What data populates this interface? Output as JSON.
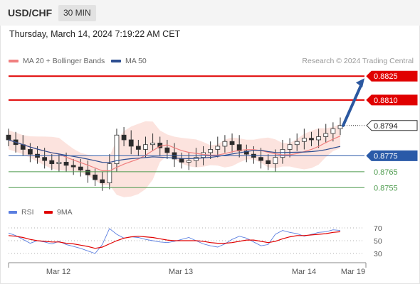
{
  "header": {
    "symbol": "USD/CHF",
    "timeframe": "30 MIN"
  },
  "timestamp": "Thursday, March 14, 2024 7:19:22 AM CET",
  "legend": {
    "ma_bb": "MA 20 + Bollinger Bands",
    "ma50": "MA 50",
    "rsi": "RSI",
    "rsi_ma": "9MA"
  },
  "credit": "Research © 2024 Trading Central",
  "colors": {
    "resistance": "#e00000",
    "support": "#4c9a4c",
    "pivot": "#2a5aa8",
    "current": "#222222",
    "ma20": "#f08080",
    "bands": "#fbd9d3",
    "ma50": "#2d4e91",
    "arrow": "#2b58a0",
    "rsi": "#5a7ee0",
    "rsi_ma": "#e00000",
    "candle_up": "#ffffff",
    "candle_down": "#2a2a2a"
  },
  "chart_data": [
    {
      "type": "candlestick",
      "price_range": [
        0.8748,
        0.883
      ],
      "x_labels": [
        "Mar 12",
        "Mar 13",
        "Mar 14",
        "Mar 19"
      ],
      "levels": [
        {
          "label": "0.8825",
          "value": 0.8825,
          "kind": "resistance"
        },
        {
          "label": "0.8810",
          "value": 0.881,
          "kind": "resistance"
        },
        {
          "label": "0.8794",
          "value": 0.8794,
          "kind": "current"
        },
        {
          "label": "0.8775",
          "value": 0.8775,
          "kind": "pivot"
        },
        {
          "label": "0.8765",
          "value": 0.8765,
          "kind": "support"
        },
        {
          "label": "0.8755",
          "value": 0.8755,
          "kind": "support"
        }
      ],
      "close_series": [
        0.8785,
        0.8782,
        0.8779,
        0.8776,
        0.8774,
        0.8772,
        0.877,
        0.8771,
        0.8769,
        0.8768,
        0.8766,
        0.8763,
        0.876,
        0.8758,
        0.877,
        0.8788,
        0.8785,
        0.8781,
        0.8779,
        0.8782,
        0.8783,
        0.878,
        0.8777,
        0.8773,
        0.8771,
        0.8772,
        0.8774,
        0.8777,
        0.8779,
        0.8781,
        0.8784,
        0.8782,
        0.8778,
        0.8776,
        0.8774,
        0.8772,
        0.877,
        0.8774,
        0.8779,
        0.8782,
        0.8784,
        0.8786,
        0.8785,
        0.8787,
        0.8789,
        0.8792,
        0.8794
      ],
      "forecast": {
        "from": 0.8794,
        "to": 0.8825
      }
    },
    {
      "type": "line",
      "title": "RSI",
      "y_ticks": [
        70,
        50,
        30
      ],
      "series": [
        {
          "name": "RSI",
          "values": [
            62,
            58,
            52,
            46,
            50,
            48,
            45,
            49,
            44,
            41,
            38,
            34,
            30,
            44,
            69,
            60,
            54,
            56,
            55,
            52,
            50,
            48,
            47,
            49,
            52,
            55,
            50,
            45,
            42,
            40,
            45,
            52,
            57,
            54,
            48,
            42,
            44,
            60,
            66,
            63,
            61,
            57,
            60,
            63,
            64,
            67,
            66
          ]
        },
        {
          "name": "9MA",
          "values": [
            58,
            57,
            55,
            52,
            50,
            49,
            48,
            48,
            46,
            45,
            43,
            41,
            38,
            40,
            45,
            50,
            54,
            56,
            57,
            56,
            55,
            53,
            51,
            50,
            50,
            50,
            50,
            49,
            47,
            46,
            46,
            47,
            49,
            51,
            51,
            49,
            47,
            49,
            53,
            56,
            58,
            58,
            59,
            60,
            61,
            63,
            64
          ]
        }
      ]
    }
  ]
}
